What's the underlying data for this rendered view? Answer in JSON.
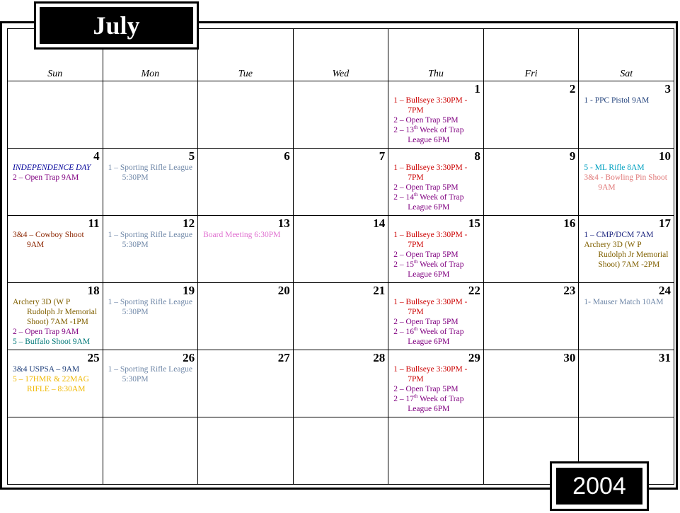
{
  "month": "July",
  "year": "2004",
  "weekdays": [
    "Sun",
    "Mon",
    "Tue",
    "Wed",
    "Thu",
    "Fri",
    "Sat"
  ],
  "weeks": [
    [
      {
        "day": "",
        "events": []
      },
      {
        "day": "",
        "events": []
      },
      {
        "day": "",
        "events": []
      },
      {
        "day": "",
        "events": []
      },
      {
        "day": "1",
        "events": [
          {
            "text": "1 – Bullseye 3:30PM - 7PM",
            "color": "#cc0000"
          },
          {
            "text": "2 – Open Trap 5PM",
            "color": "#800080"
          },
          {
            "text": "2 – 13",
            "sup": "th",
            "after": " Week of Trap League  6PM",
            "color": "#800080"
          }
        ]
      },
      {
        "day": "2",
        "events": []
      },
      {
        "day": "3",
        "events": [
          {
            "text": "1 -  PPC Pistol  9AM",
            "color": "#1f3f7a"
          }
        ]
      }
    ],
    [
      {
        "day": "4",
        "events": [
          {
            "text": "INDEPENDENCE DAY",
            "color": "#000099",
            "italic": true
          },
          {
            "text": "2 – Open Trap  9AM",
            "color": "#800080"
          }
        ]
      },
      {
        "day": "5",
        "events": [
          {
            "text": "1 – Sporting Rifle League  5:30PM",
            "color": "#7088a8"
          }
        ]
      },
      {
        "day": "6",
        "events": []
      },
      {
        "day": "7",
        "events": []
      },
      {
        "day": "8",
        "events": [
          {
            "text": "1 – Bullseye 3:30PM - 7PM",
            "color": "#cc0000"
          },
          {
            "text": "2 – Open Trap 5PM",
            "color": "#800080"
          },
          {
            "text": "2 – 14",
            "sup": "th",
            "after": " Week of Trap League  6PM",
            "color": "#800080"
          }
        ]
      },
      {
        "day": "9",
        "events": []
      },
      {
        "day": "10",
        "events": [
          {
            "text": "5 - ML Rifle 8AM",
            "color": "#00a0c0"
          },
          {
            "text": "3&4 - Bowling Pin Shoot 9AM",
            "color": "#e07878"
          }
        ]
      }
    ],
    [
      {
        "day": "11",
        "events": [
          {
            "text": "3&4 – Cowboy Shoot 9AM",
            "color": "#8b2500"
          }
        ]
      },
      {
        "day": "12",
        "events": [
          {
            "text": "1 – Sporting Rifle League  5:30PM",
            "color": "#7088a8"
          }
        ]
      },
      {
        "day": "13",
        "events": [
          {
            "text": "Board Meeting  6:30PM",
            "color": "#e070d0"
          }
        ]
      },
      {
        "day": "14",
        "events": []
      },
      {
        "day": "15",
        "events": [
          {
            "text": "1 – Bullseye 3:30PM - 7PM",
            "color": "#cc0000"
          },
          {
            "text": "2 – Open Trap 5PM",
            "color": "#800080"
          },
          {
            "text": "2 – 15",
            "sup": "th",
            "after": " Week of Trap League  6PM",
            "color": "#800080"
          }
        ]
      },
      {
        "day": "16",
        "events": []
      },
      {
        "day": "17",
        "events": [
          {
            "text": "1 – CMP/DCM  7AM",
            "color": "#1a237e"
          },
          {
            "text": "Archery 3D (W P Rudolph Jr Memorial Shoot) 7AM -2PM",
            "color": "#806000"
          }
        ]
      }
    ],
    [
      {
        "day": "18",
        "events": [
          {
            "text": "Archery 3D (W P Rudolph Jr Memorial Shoot) 7AM -1PM",
            "color": "#806000"
          },
          {
            "text": "2 – Open Trap  9AM",
            "color": "#800080"
          },
          {
            "text": "5 – Buffalo Shoot  9AM",
            "color": "#007878"
          }
        ]
      },
      {
        "day": "19",
        "events": [
          {
            "text": "1 – Sporting Rifle League  5:30PM",
            "color": "#7088a8"
          }
        ]
      },
      {
        "day": "20",
        "events": []
      },
      {
        "day": "21",
        "events": []
      },
      {
        "day": "22",
        "events": [
          {
            "text": "1 – Bullseye 3:30PM - 7PM",
            "color": "#cc0000"
          },
          {
            "text": "2 – Open Trap 5PM",
            "color": "#800080"
          },
          {
            "text": "2 – 16",
            "sup": "th",
            "after": " Week of Trap League  6PM",
            "color": "#800080"
          }
        ]
      },
      {
        "day": "23",
        "events": []
      },
      {
        "day": "24",
        "events": [
          {
            "text": "1- Mauser Match 10AM",
            "color": "#7088a8"
          }
        ]
      }
    ],
    [
      {
        "day": "25",
        "events": [
          {
            "text": "3&4 USPSA – 9AM",
            "color": "#1f3f7a"
          },
          {
            "text": "5 – 17HMR & 22MAG RIFLE – 8:30AM",
            "color": "#f0b800"
          }
        ]
      },
      {
        "day": "26",
        "events": [
          {
            "text": "1 – Sporting Rifle League  5:30PM",
            "color": "#7088a8"
          }
        ]
      },
      {
        "day": "27",
        "events": []
      },
      {
        "day": "28",
        "events": []
      },
      {
        "day": "29",
        "events": [
          {
            "text": "1 – Bullseye 3:30PM - 7PM",
            "color": "#cc0000"
          },
          {
            "text": "2 – Open Trap 5PM",
            "color": "#800080"
          },
          {
            "text": "2 – 17",
            "sup": "th",
            "after": " Week of Trap League  6PM",
            "color": "#800080"
          }
        ]
      },
      {
        "day": "30",
        "events": []
      },
      {
        "day": "31",
        "events": []
      }
    ],
    [
      {
        "day": "",
        "events": []
      },
      {
        "day": "",
        "events": []
      },
      {
        "day": "",
        "events": []
      },
      {
        "day": "",
        "events": []
      },
      {
        "day": "",
        "events": []
      },
      {
        "day": "",
        "events": []
      },
      {
        "day": "",
        "events": []
      }
    ]
  ]
}
